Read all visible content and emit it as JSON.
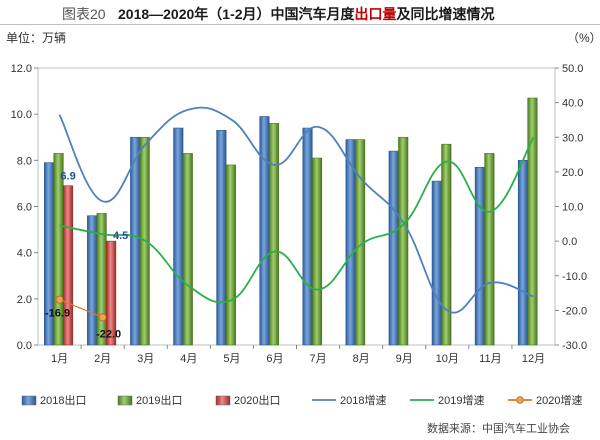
{
  "figure": {
    "title_prefix": "图表20",
    "title_part1": "2018—2020年（1-2月）中国汽车月度",
    "title_highlight": "出口量",
    "title_part2": "及同比增速情况",
    "unit_left": "单位：万辆",
    "unit_right": "（%）",
    "source": "数据来源：中国汽车工业协会"
  },
  "colors": {
    "bar2018": "#4a7ebb",
    "bar2019": "#77a84a",
    "bar2020": "#d0504e",
    "line2018": "#4f81bd",
    "line2019": "#2ab04a",
    "line2020": "#d9772b"
  },
  "chart_data": {
    "type": "bar",
    "categories": [
      "1月",
      "2月",
      "3月",
      "4月",
      "5月",
      "6月",
      "7月",
      "8月",
      "9月",
      "10月",
      "11月",
      "12月"
    ],
    "y_left": {
      "min": 0,
      "max": 12,
      "step": 2,
      "ticks": [
        "0.0",
        "2.0",
        "4.0",
        "6.0",
        "8.0",
        "10.0",
        "12.0"
      ]
    },
    "y_right": {
      "min": -30,
      "max": 50,
      "step": 10,
      "ticks": [
        "-30.0",
        "-20.0",
        "-10.0",
        "0.0",
        "10.0",
        "20.0",
        "30.0",
        "40.0",
        "50.0"
      ]
    },
    "grid": false,
    "legend_position": "bottom",
    "bars": [
      {
        "name": "2018出口",
        "values": [
          7.9,
          5.6,
          9.0,
          9.4,
          9.3,
          9.9,
          9.4,
          8.9,
          8.4,
          7.1,
          7.7,
          8.0
        ]
      },
      {
        "name": "2019出口",
        "values": [
          8.3,
          5.7,
          9.0,
          8.3,
          7.8,
          9.6,
          8.1,
          8.9,
          9.0,
          8.7,
          8.3,
          10.7
        ]
      },
      {
        "name": "2020出口",
        "values": [
          6.9,
          4.5,
          null,
          null,
          null,
          null,
          null,
          null,
          null,
          null,
          null,
          null
        ]
      }
    ],
    "lines": [
      {
        "name": "2018增速",
        "axis": "right",
        "values": [
          36.5,
          11.5,
          28.0,
          38.0,
          35.0,
          22.0,
          33.0,
          18.0,
          5.0,
          -20.0,
          -12.0,
          -16.0
        ]
      },
      {
        "name": "2019增速",
        "axis": "right",
        "values": [
          4.5,
          2.0,
          0.0,
          -13.0,
          -17.0,
          -3.0,
          -14.0,
          -1.0,
          5.0,
          23.0,
          8.5,
          30.0
        ]
      },
      {
        "name": "2020增速",
        "axis": "right",
        "values": [
          -16.9,
          -22.0,
          null,
          null,
          null,
          null,
          null,
          null,
          null,
          null,
          null,
          null
        ]
      }
    ],
    "data_labels": [
      {
        "text": "6.9",
        "series": "2020出口",
        "index": 0
      },
      {
        "text": "4.5",
        "series": "2020出口",
        "index": 1
      },
      {
        "text": "-16.9",
        "series": "2020增速",
        "index": 0
      },
      {
        "text": "-22.0",
        "series": "2020增速",
        "index": 1
      }
    ]
  }
}
